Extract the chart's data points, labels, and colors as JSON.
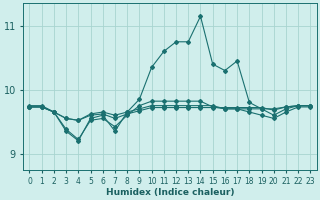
{
  "title": "",
  "xlabel": "Humidex (Indice chaleur)",
  "ylabel": "",
  "xlim": [
    -0.5,
    23.5
  ],
  "ylim": [
    8.75,
    11.35
  ],
  "yticks": [
    9,
    10,
    11
  ],
  "xticks": [
    0,
    1,
    2,
    3,
    4,
    5,
    6,
    7,
    8,
    9,
    10,
    11,
    12,
    13,
    14,
    15,
    16,
    17,
    18,
    19,
    20,
    21,
    22,
    23
  ],
  "bg_color": "#d0eeec",
  "grid_color": "#a8d4d0",
  "line_color": "#1a7070",
  "series": [
    [
      9.75,
      9.75,
      9.65,
      9.35,
      9.2,
      9.55,
      9.6,
      9.35,
      9.65,
      9.85,
      10.35,
      10.6,
      10.75,
      10.75,
      11.15,
      10.4,
      10.3,
      10.45,
      9.8,
      9.7,
      9.6,
      9.7,
      9.75,
      9.75
    ],
    [
      9.73,
      9.73,
      9.65,
      9.55,
      9.52,
      9.6,
      9.62,
      9.55,
      9.62,
      9.67,
      9.72,
      9.72,
      9.72,
      9.72,
      9.72,
      9.72,
      9.72,
      9.72,
      9.72,
      9.72,
      9.68,
      9.73,
      9.75,
      9.75
    ],
    [
      9.73,
      9.73,
      9.65,
      9.38,
      9.22,
      9.52,
      9.55,
      9.42,
      9.6,
      9.75,
      9.82,
      9.82,
      9.82,
      9.82,
      9.82,
      9.73,
      9.7,
      9.7,
      9.65,
      9.6,
      9.55,
      9.65,
      9.73,
      9.73
    ],
    [
      9.73,
      9.73,
      9.65,
      9.55,
      9.52,
      9.62,
      9.65,
      9.6,
      9.65,
      9.7,
      9.75,
      9.75,
      9.75,
      9.75,
      9.75,
      9.75,
      9.7,
      9.7,
      9.7,
      9.7,
      9.7,
      9.73,
      9.75,
      9.75
    ]
  ],
  "marker": "D",
  "markersize": 2.0,
  "linewidth": 0.8,
  "font_color": "#1a6060",
  "tick_fontsize": 5.5,
  "xlabel_fontsize": 6.5
}
